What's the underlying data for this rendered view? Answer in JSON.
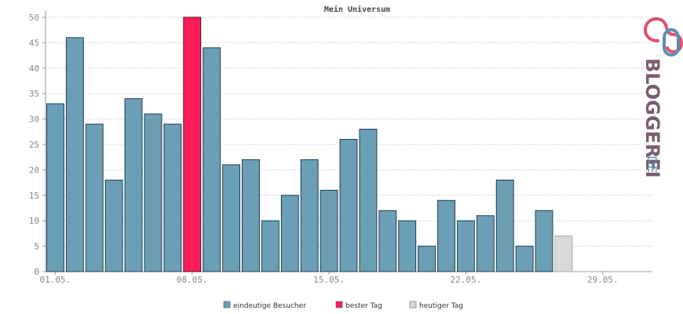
{
  "chart_data": {
    "type": "bar",
    "title": "Mein Universum",
    "x": [
      "01.05.",
      "02.05.",
      "03.05.",
      "04.05.",
      "05.05.",
      "06.05.",
      "07.05.",
      "08.05.",
      "09.05.",
      "10.05.",
      "11.05.",
      "12.05.",
      "13.05.",
      "14.05.",
      "15.05.",
      "16.05.",
      "17.05.",
      "18.05.",
      "19.05.",
      "20.05.",
      "21.05.",
      "22.05.",
      "23.05.",
      "24.05.",
      "25.05.",
      "26.05.",
      "27.05.",
      "28.05.",
      "29.05.",
      "30.05.",
      "31.05."
    ],
    "x_tick_labels": [
      "01.05.",
      "08.05.",
      "15.05.",
      "22.05.",
      "29.05."
    ],
    "series": [
      {
        "name": "eindeutige Besucher",
        "values": [
          33,
          46,
          29,
          18,
          34,
          31,
          29,
          50,
          44,
          21,
          22,
          10,
          15,
          22,
          16,
          26,
          28,
          12,
          10,
          5,
          14,
          10,
          11,
          18,
          5,
          12,
          7,
          null,
          null,
          null,
          null
        ]
      }
    ],
    "best_day": "08.05.",
    "today": "27.05.",
    "ylim": [
      0,
      50
    ],
    "yticks": [
      0,
      5,
      10,
      15,
      20,
      25,
      30,
      35,
      40,
      45,
      50
    ],
    "grid": true,
    "legend_position": "bottom",
    "legend": [
      {
        "label": "eindeutige Besucher",
        "color": "#6a9fb5"
      },
      {
        "label": "bester Tag",
        "color": "#ff1e5a"
      },
      {
        "label": "heutiger Tag",
        "color": "#d9d9d9"
      }
    ],
    "colors": {
      "normal": "#6a9fb5",
      "best": "#ff1e5a",
      "today": "#d9d9d9"
    }
  },
  "brand": {
    "name": "BLOGGEREI",
    "suffix": ".DE",
    "colors": {
      "pink": "#e0506a",
      "dark": "#7a5d70",
      "blue": "#5a8fb0"
    }
  }
}
